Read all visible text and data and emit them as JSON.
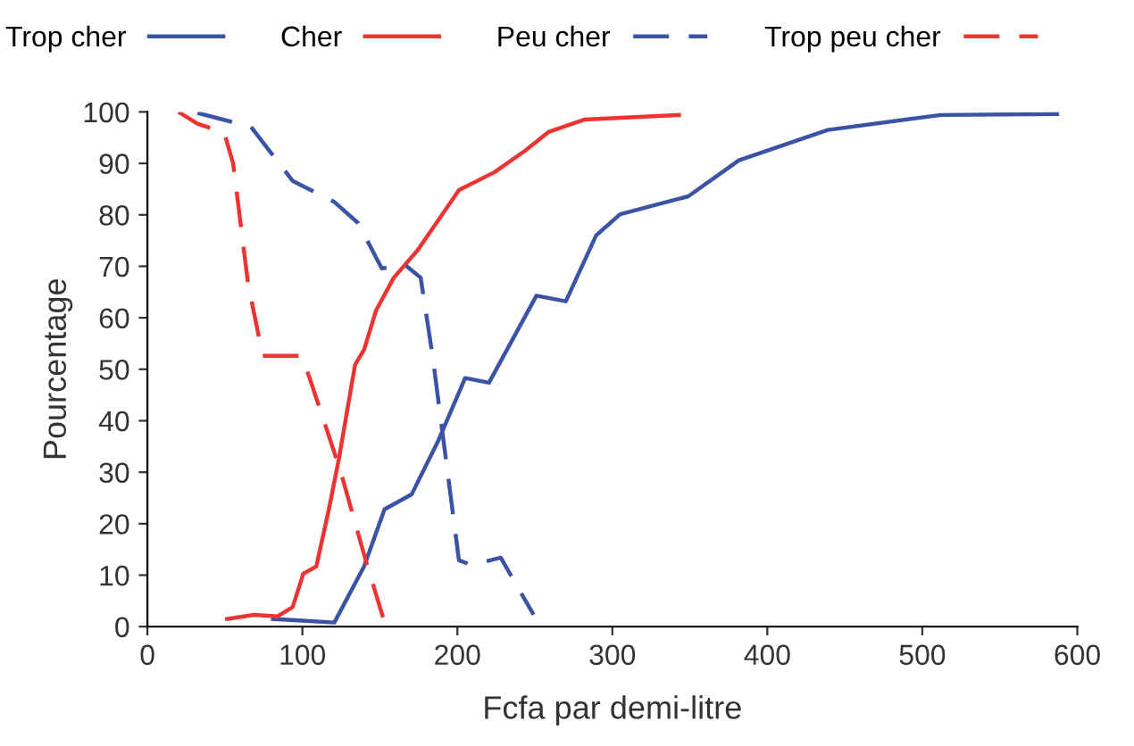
{
  "chart_data": {
    "type": "line",
    "xlabel": "Fcfa par demi-litre",
    "ylabel": "Pourcentage",
    "xlim": [
      0,
      600
    ],
    "ylim": [
      0,
      100
    ],
    "xticks": [
      0,
      100,
      200,
      300,
      400,
      500,
      600
    ],
    "yticks": [
      0,
      10,
      20,
      30,
      40,
      50,
      60,
      70,
      80,
      90,
      100
    ],
    "grid": false,
    "legend": "top",
    "marker": "none",
    "series": [
      {
        "name": "Trop cher",
        "color": "#3a53a4",
        "line_style": "solid",
        "x": [
          81,
          120.6,
          139.8,
          153,
          170.5,
          187.8,
          205,
          220.4,
          251,
          270,
          289.5,
          305,
          349,
          381.7,
          439,
          512,
          587
        ],
        "values": [
          1.5,
          0.8,
          11.7,
          22.8,
          25.7,
          36.2,
          48.3,
          47.4,
          64.3,
          63.2,
          76,
          80.1,
          83.6,
          90.6,
          96.5,
          99.4,
          99.6
        ]
      },
      {
        "name": "Cher",
        "color": "#ee3333",
        "line_style": "solid",
        "x": [
          51.4,
          68.7,
          84,
          93.7,
          100.6,
          109,
          117.5,
          123.6,
          134,
          139.8,
          147.5,
          159,
          174.3,
          201,
          224,
          243.4,
          258.8,
          281.8,
          343
        ],
        "values": [
          1.5,
          2.3,
          2,
          3.8,
          10.3,
          11.7,
          23.4,
          32.7,
          50.9,
          53.8,
          61.4,
          67.8,
          73.1,
          84.8,
          88.3,
          92.4,
          96.1,
          98.5,
          99.4
        ]
      },
      {
        "name": "Peu cher",
        "color": "#3a53a4",
        "line_style": "dashed",
        "x": [
          32.3,
          66.8,
          93.7,
          120.6,
          136,
          151.2,
          166.6,
          176.3,
          184,
          201,
          208.9,
          228,
          249.2
        ],
        "values": [
          99.8,
          97.1,
          86.6,
          82.5,
          78.4,
          69.6,
          70.2,
          67.8,
          52.6,
          12.9,
          12,
          13.4,
          2.3
        ]
      },
      {
        "name": "Trop peu cher",
        "color": "#ee3333",
        "line_style": "dashed",
        "x": [
          20,
          32.3,
          49.5,
          55.3,
          64.9,
          74.4,
          99.4,
          105,
          124.4,
          139.8,
          152
        ],
        "values": [
          100,
          97.7,
          96,
          90,
          66.7,
          52.6,
          52.6,
          48,
          30.4,
          14,
          1.8
        ]
      }
    ]
  }
}
